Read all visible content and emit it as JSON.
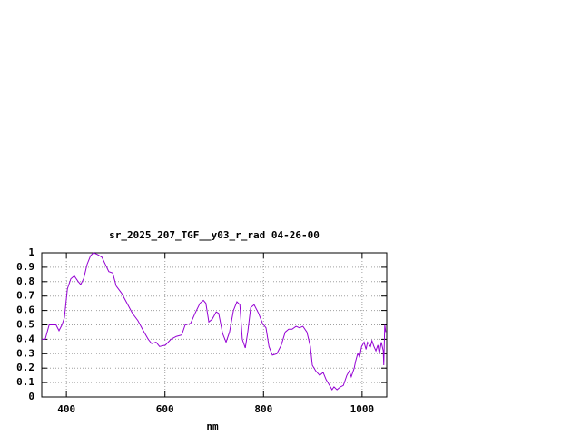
{
  "chart_data": {
    "type": "line",
    "title": "sr_2025_207_TGF__y03_r_rad 04-26-00",
    "x_label": "nm",
    "color": "#9400d3",
    "grid": true,
    "xlim": [
      350,
      1050
    ],
    "xticks": [
      400,
      600,
      800,
      1000
    ],
    "ylim": [
      0,
      1
    ],
    "yticks": [
      0,
      0.1,
      0.2,
      0.3,
      0.4,
      0.5,
      0.6,
      0.7,
      0.8,
      0.9,
      1
    ],
    "x": [
      350,
      357,
      365,
      372,
      379,
      385,
      391,
      396,
      402,
      409,
      416,
      424,
      429,
      435,
      442,
      449,
      455,
      462,
      472,
      479,
      486,
      494,
      501,
      512,
      523,
      534,
      545,
      556,
      566,
      573,
      582,
      589,
      601,
      612,
      623,
      634,
      641,
      652,
      661,
      671,
      678,
      683,
      689,
      696,
      704,
      709,
      717,
      724,
      731,
      739,
      746,
      752,
      757,
      763,
      768,
      774,
      781,
      790,
      798,
      805,
      811,
      818,
      827,
      836,
      844,
      851,
      858,
      866,
      873,
      880,
      888,
      895,
      899,
      906,
      914,
      921,
      927,
      934,
      939,
      943,
      949,
      956,
      962,
      969,
      974,
      978,
      984,
      987,
      991,
      995,
      999,
      1004,
      1008,
      1011,
      1017,
      1020,
      1024,
      1028,
      1032,
      1035,
      1039,
      1043,
      1044,
      1046,
      1048
    ],
    "values": [
      0.4,
      0.4,
      0.5,
      0.5,
      0.5,
      0.46,
      0.5,
      0.55,
      0.75,
      0.82,
      0.84,
      0.8,
      0.78,
      0.82,
      0.92,
      0.98,
      1.0,
      0.99,
      0.97,
      0.92,
      0.87,
      0.86,
      0.77,
      0.72,
      0.65,
      0.58,
      0.53,
      0.46,
      0.4,
      0.37,
      0.38,
      0.35,
      0.36,
      0.4,
      0.42,
      0.43,
      0.5,
      0.51,
      0.58,
      0.65,
      0.67,
      0.65,
      0.52,
      0.54,
      0.59,
      0.58,
      0.44,
      0.38,
      0.45,
      0.6,
      0.66,
      0.64,
      0.4,
      0.34,
      0.45,
      0.62,
      0.64,
      0.58,
      0.51,
      0.48,
      0.35,
      0.29,
      0.3,
      0.36,
      0.45,
      0.47,
      0.47,
      0.49,
      0.48,
      0.49,
      0.45,
      0.35,
      0.22,
      0.18,
      0.15,
      0.17,
      0.12,
      0.08,
      0.05,
      0.07,
      0.05,
      0.07,
      0.08,
      0.15,
      0.18,
      0.14,
      0.2,
      0.25,
      0.3,
      0.28,
      0.35,
      0.38,
      0.33,
      0.38,
      0.35,
      0.39,
      0.35,
      0.32,
      0.36,
      0.3,
      0.38,
      0.32,
      0.22,
      0.5,
      0.45
    ]
  }
}
